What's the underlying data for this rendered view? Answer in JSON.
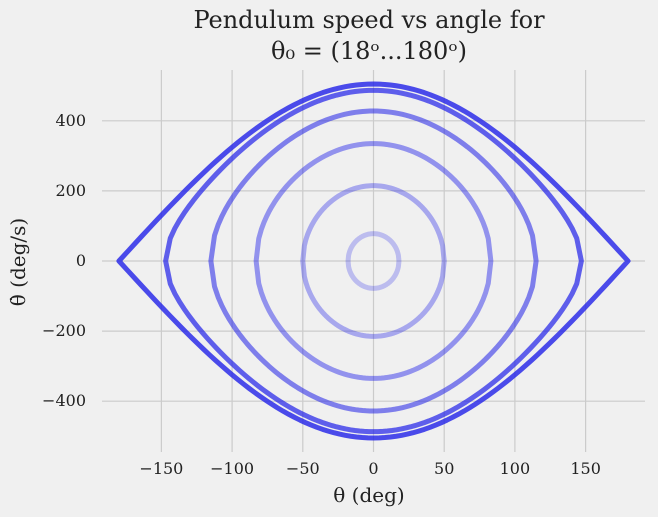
{
  "chart_data": {
    "type": "line",
    "title_line1": "Pendulum speed vs angle for",
    "title_line2": "θ₀ = (18ᵒ...180ᵒ)",
    "xlabel": "θ (deg)",
    "ylabel": "θ̇ (deg/s)",
    "xlim": [
      -192,
      192
    ],
    "ylim": [
      -545,
      545
    ],
    "xticks": [
      -150,
      -100,
      -50,
      0,
      50,
      100,
      150
    ],
    "xtick_labels": [
      "−150",
      "−100",
      "−50",
      "0",
      "50",
      "100",
      "150"
    ],
    "yticks": [
      -400,
      -200,
      0,
      200,
      400
    ],
    "ytick_labels": [
      "−400",
      "−200",
      "0",
      "200",
      "400"
    ],
    "grid": true,
    "color": "#2020e8",
    "series": [
      {
        "theta0": 18,
        "max_speed": 78,
        "opacity": 0.25
      },
      {
        "theta0": 50,
        "max_speed": 215,
        "opacity": 0.35
      },
      {
        "theta0": 83,
        "max_speed": 335,
        "opacity": 0.45
      },
      {
        "theta0": 115,
        "max_speed": 428,
        "opacity": 0.55
      },
      {
        "theta0": 147,
        "max_speed": 487,
        "opacity": 0.7
      },
      {
        "theta0": 180,
        "max_speed": 505,
        "opacity": 0.8
      }
    ]
  }
}
